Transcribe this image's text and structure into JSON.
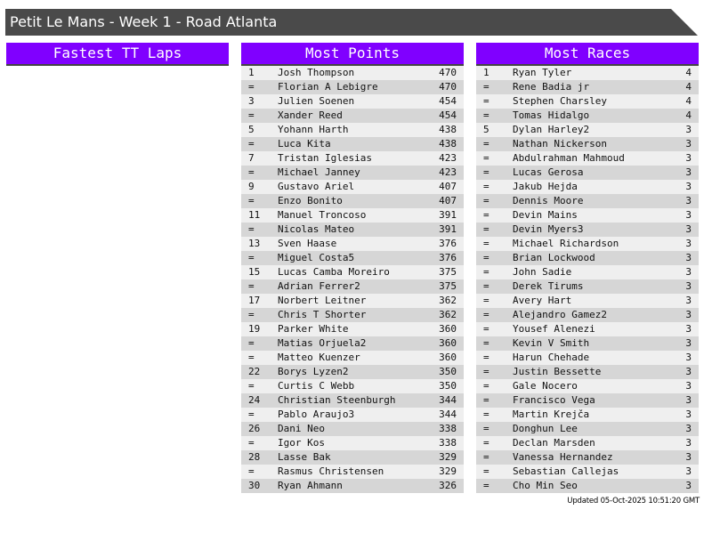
{
  "title": "Petit Le Mans - Week 1 - Road Atlanta",
  "colors": {
    "header_bg": "#8000ff",
    "title_bg": "#4a4a4a",
    "row_light": "#efefef",
    "row_dark": "#d6d6d6"
  },
  "panels": [
    {
      "title": "Fastest TT Laps",
      "rows": []
    },
    {
      "title": "Most Points",
      "rows": [
        [
          "1",
          "Josh Thompson",
          "470"
        ],
        [
          "=",
          "Florian A Lebigre",
          "470"
        ],
        [
          "3",
          "Julien Soenen",
          "454"
        ],
        [
          "=",
          "Xander Reed",
          "454"
        ],
        [
          "5",
          "Yohann Harth",
          "438"
        ],
        [
          "=",
          "Luca Kita",
          "438"
        ],
        [
          "7",
          "Tristan Iglesias",
          "423"
        ],
        [
          "=",
          "Michael Janney",
          "423"
        ],
        [
          "9",
          "Gustavo Ariel",
          "407"
        ],
        [
          "=",
          "Enzo Bonito",
          "407"
        ],
        [
          "11",
          "Manuel Troncoso",
          "391"
        ],
        [
          "=",
          "Nicolas Mateo",
          "391"
        ],
        [
          "13",
          "Sven Haase",
          "376"
        ],
        [
          "=",
          "Miguel Costa5",
          "376"
        ],
        [
          "15",
          "Lucas Camba Moreiro",
          "375"
        ],
        [
          "=",
          "Adrian Ferrer2",
          "375"
        ],
        [
          "17",
          "Norbert Leitner",
          "362"
        ],
        [
          "=",
          "Chris T Shorter",
          "362"
        ],
        [
          "19",
          "Parker White",
          "360"
        ],
        [
          "=",
          "Matias Orjuela2",
          "360"
        ],
        [
          "=",
          "Matteo Kuenzer",
          "360"
        ],
        [
          "22",
          "Borys Lyzen2",
          "350"
        ],
        [
          "=",
          "Curtis C Webb",
          "350"
        ],
        [
          "24",
          "Christian Steenburgh",
          "344"
        ],
        [
          "=",
          "Pablo Araujo3",
          "344"
        ],
        [
          "26",
          "Dani Neo",
          "338"
        ],
        [
          "=",
          "Igor Kos",
          "338"
        ],
        [
          "28",
          "Lasse Bak",
          "329"
        ],
        [
          "=",
          "Rasmus Christensen",
          "329"
        ],
        [
          "30",
          "Ryan Ahmann",
          "326"
        ]
      ]
    },
    {
      "title": "Most Races",
      "rows": [
        [
          "1",
          "Ryan Tyler",
          "4"
        ],
        [
          "=",
          "Rene Badia jr",
          "4"
        ],
        [
          "=",
          "Stephen Charsley",
          "4"
        ],
        [
          "=",
          "Tomas Hidalgo",
          "4"
        ],
        [
          "5",
          "Dylan Harley2",
          "3"
        ],
        [
          "=",
          "Nathan Nickerson",
          "3"
        ],
        [
          "=",
          "Abdulrahman Mahmoud",
          "3"
        ],
        [
          "=",
          "Lucas Gerosa",
          "3"
        ],
        [
          "=",
          "Jakub Hejda",
          "3"
        ],
        [
          "=",
          "Dennis Moore",
          "3"
        ],
        [
          "=",
          "Devin Mains",
          "3"
        ],
        [
          "=",
          "Devin Myers3",
          "3"
        ],
        [
          "=",
          "Michael Richardson",
          "3"
        ],
        [
          "=",
          "Brian Lockwood",
          "3"
        ],
        [
          "=",
          "John Sadie",
          "3"
        ],
        [
          "=",
          "Derek Tirums",
          "3"
        ],
        [
          "=",
          "Avery Hart",
          "3"
        ],
        [
          "=",
          "Alejandro Gamez2",
          "3"
        ],
        [
          "=",
          "Yousef Alenezi",
          "3"
        ],
        [
          "=",
          "Kevin V Smith",
          "3"
        ],
        [
          "=",
          "Harun Chehade",
          "3"
        ],
        [
          "=",
          "Justin Bessette",
          "3"
        ],
        [
          "=",
          "Gale Nocero",
          "3"
        ],
        [
          "=",
          "Francisco Vega",
          "3"
        ],
        [
          "=",
          "Martin Krejča",
          "3"
        ],
        [
          "=",
          "Donghun Lee",
          "3"
        ],
        [
          "=",
          "Declan Marsden",
          "3"
        ],
        [
          "=",
          "Vanessa Hernandez",
          "3"
        ],
        [
          "=",
          "Sebastian Callejas",
          "3"
        ],
        [
          "=",
          "Cho Min Seo",
          "3"
        ]
      ]
    }
  ],
  "updated": "Updated 05-Oct-2025 10:51:20 GMT"
}
